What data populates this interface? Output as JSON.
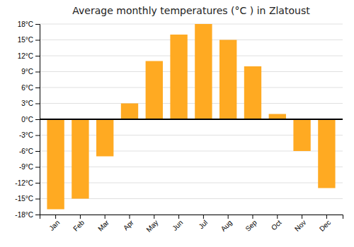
{
  "chart_data": {
    "type": "bar",
    "title": "Average monthly temperatures (°C ) in Zlatoust",
    "categories": [
      "Jan",
      "Feb",
      "Mar",
      "Apr",
      "May",
      "Jun",
      "Jul",
      "Aug",
      "Sep",
      "Oct",
      "Nov",
      "Dec"
    ],
    "values": [
      -17,
      -15,
      -7,
      3,
      11,
      16,
      18,
      15,
      10,
      1,
      -6,
      -13
    ],
    "color": "#FFAA22",
    "ylim": [
      -18,
      18
    ],
    "yticks": [
      {
        "value": -18,
        "label": "-18°C"
      },
      {
        "value": -15,
        "label": "-15°C"
      },
      {
        "value": -12,
        "label": "-12°C"
      },
      {
        "value": -9,
        "label": "-9°C"
      },
      {
        "value": -6,
        "label": "-6°C"
      },
      {
        "value": -3,
        "label": "-3°C"
      },
      {
        "value": 0,
        "label": "0°C"
      },
      {
        "value": 3,
        "label": "3°C"
      },
      {
        "value": 6,
        "label": "6°C"
      },
      {
        "value": 9,
        "label": "9°C"
      },
      {
        "value": 12,
        "label": "12°C"
      },
      {
        "value": 15,
        "label": "15°C"
      },
      {
        "value": 18,
        "label": "18°C"
      }
    ],
    "grid": true
  }
}
